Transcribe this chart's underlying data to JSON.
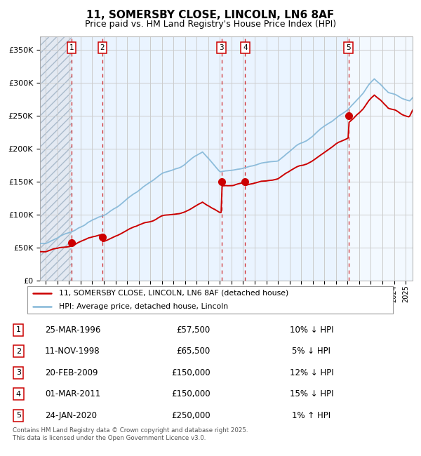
{
  "title": "11, SOMERSBY CLOSE, LINCOLN, LN6 8AF",
  "subtitle": "Price paid vs. HM Land Registry's House Price Index (HPI)",
  "legend_line1": "11, SOMERSBY CLOSE, LINCOLN, LN6 8AF (detached house)",
  "legend_line2": "HPI: Average price, detached house, Lincoln",
  "footer1": "Contains HM Land Registry data © Crown copyright and database right 2025.",
  "footer2": "This data is licensed under the Open Government Licence v3.0.",
  "transactions": [
    {
      "num": 1,
      "date": "25-MAR-1996",
      "price": 57500,
      "pct": "10%",
      "dir": "↓",
      "year": 1996.23
    },
    {
      "num": 2,
      "date": "11-NOV-1998",
      "price": 65500,
      "pct": "5%",
      "dir": "↓",
      "year": 1998.87
    },
    {
      "num": 3,
      "date": "20-FEB-2009",
      "price": 150000,
      "pct": "12%",
      "dir": "↓",
      "year": 2009.13
    },
    {
      "num": 4,
      "date": "01-MAR-2011",
      "price": 150000,
      "pct": "15%",
      "dir": "↓",
      "year": 2011.17
    },
    {
      "num": 5,
      "date": "24-JAN-2020",
      "price": 250000,
      "pct": "1%",
      "dir": "↑",
      "year": 2020.07
    }
  ],
  "ylim": [
    0,
    370000
  ],
  "xlim_start": 1993.5,
  "xlim_end": 2025.6,
  "hpi_color": "#85b8d8",
  "price_color": "#cc0000",
  "marker_color": "#cc0000",
  "vline_color": "#cc0000",
  "shaded_color": "#ddeeff",
  "grid_color": "#cccccc",
  "background_color": "#ffffff",
  "title_fontsize": 11,
  "subtitle_fontsize": 9
}
